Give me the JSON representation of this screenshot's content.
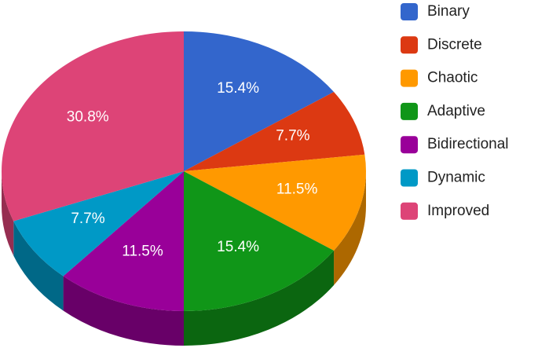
{
  "chart_data": {
    "type": "pie",
    "three_d": true,
    "legend": "right",
    "categories": [
      "Binary",
      "Discrete",
      "Chaotic",
      "Adaptive",
      "Bidirectional",
      "Dynamic",
      "Improved"
    ],
    "values": [
      15.4,
      7.7,
      11.5,
      15.4,
      11.5,
      7.7,
      30.8
    ],
    "value_labels": [
      "15.4%",
      "7.7%",
      "11.5%",
      "15.4%",
      "11.5%",
      "7.7%",
      "30.8%"
    ],
    "colors": [
      "#3366cc",
      "#dc3912",
      "#ff9900",
      "#109618",
      "#990099",
      "#0099c6",
      "#dd4477"
    ]
  }
}
